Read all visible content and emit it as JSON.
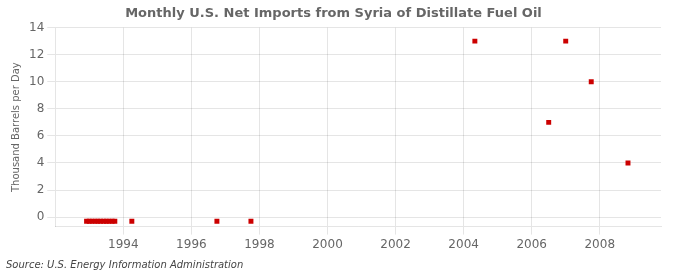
{
  "chart_data": {
    "type": "scatter",
    "title": "Monthly U.S. Net Imports from Syria of Distillate Fuel Oil",
    "ylabel": "Thousand Barrels per Day",
    "annotation": "Source: U.S. Energy Information Administration",
    "x": [
      1992.92,
      1993.0,
      1993.08,
      1993.17,
      1993.25,
      1993.33,
      1993.42,
      1993.5,
      1993.58,
      1993.67,
      1993.75,
      1994.25,
      1996.75,
      1997.75,
      2004.33,
      2006.5,
      2007.0,
      2007.75,
      2008.83
    ],
    "values": [
      -0.3,
      -0.3,
      -0.3,
      -0.3,
      -0.3,
      -0.3,
      -0.3,
      -0.3,
      -0.3,
      -0.3,
      -0.3,
      -0.3,
      -0.3,
      -0.3,
      13,
      7,
      13,
      10,
      4
    ],
    "color": "#cc0000",
    "marker": "square",
    "xlim": [
      1992.0,
      2009.8
    ],
    "ylim": [
      -0.7,
      14
    ],
    "xticks": [
      1994,
      1996,
      1998,
      2000,
      2002,
      2004,
      2006,
      2008
    ],
    "yticks": [
      0,
      2,
      4,
      6,
      8,
      10,
      12,
      14
    ],
    "grid": true
  }
}
